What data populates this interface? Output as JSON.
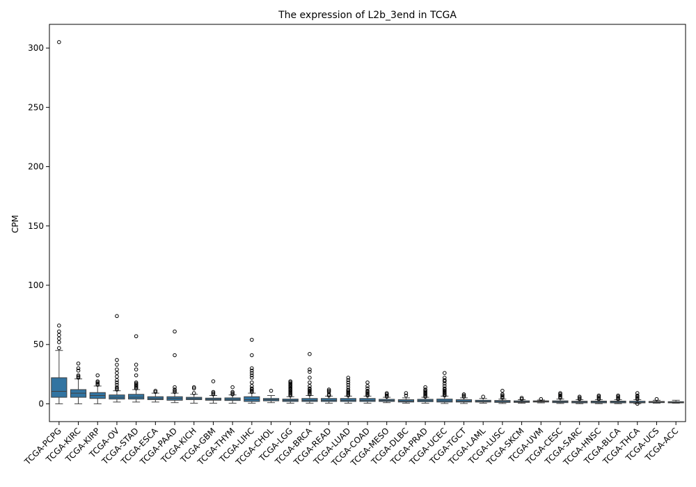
{
  "chart_data": {
    "type": "box",
    "title": "The expression of L2b_3end in TCGA",
    "xlabel": "",
    "ylabel": "CPM",
    "ylim": [
      -15,
      320
    ],
    "yticks": [
      0,
      50,
      100,
      150,
      200,
      250,
      300
    ],
    "box_color": "#3274a1",
    "grid": false,
    "categories": [
      "TCGA-PCPG",
      "TCGA-KIRC",
      "TCGA-KIRP",
      "TCGA-OV",
      "TCGA-STAD",
      "TCGA-ESCA",
      "TCGA-PAAD",
      "TCGA-KICH",
      "TCGA-GBM",
      "TCGA-THYM",
      "TCGA-LIHC",
      "TCGA-CHOL",
      "TCGA-LGG",
      "TCGA-BRCA",
      "TCGA-READ",
      "TCGA-LUAD",
      "TCGA-COAD",
      "TCGA-MESO",
      "TCGA-DLBC",
      "TCGA-PRAD",
      "TCGA-UCEC",
      "TCGA-TGCT",
      "TCGA-LAML",
      "TCGA-LUSC",
      "TCGA-SKCM",
      "TCGA-UVM",
      "TCGA-CESC",
      "TCGA-SARC",
      "TCGA-HNSC",
      "TCGA-BLCA",
      "TCGA-THCA",
      "TCGA-UCS",
      "TCGA-ACC"
    ],
    "boxes": [
      {
        "whislo": 0,
        "q1": 5.5,
        "med": 10.5,
        "q3": 22,
        "whishi": 45,
        "fliers": [
          47,
          52,
          55,
          58,
          61,
          66,
          305
        ]
      },
      {
        "whislo": 0,
        "q1": 5.5,
        "med": 9,
        "q3": 12,
        "whishi": 21,
        "fliers": [
          22,
          23,
          24,
          28,
          30,
          34
        ]
      },
      {
        "whislo": 0,
        "q1": 4.5,
        "med": 7,
        "q3": 9.5,
        "whishi": 15,
        "fliers": [
          16,
          17,
          18,
          19,
          24
        ]
      },
      {
        "whislo": 1.5,
        "q1": 4,
        "med": 5.5,
        "q3": 7.5,
        "whishi": 11,
        "fliers": [
          12,
          13,
          14,
          16,
          18,
          20,
          23,
          26,
          29,
          33,
          37,
          74
        ]
      },
      {
        "whislo": 1.5,
        "q1": 4,
        "med": 5.5,
        "q3": 8,
        "whishi": 12,
        "fliers": [
          13,
          14,
          15,
          16,
          17,
          18,
          24,
          29,
          33,
          57
        ]
      },
      {
        "whislo": 1.5,
        "q1": 3.5,
        "med": 4.5,
        "q3": 6,
        "whishi": 9,
        "fliers": [
          10,
          11
        ]
      },
      {
        "whislo": 1,
        "q1": 3,
        "med": 4.5,
        "q3": 6,
        "whishi": 9,
        "fliers": [
          10,
          11,
          12,
          14,
          41,
          61
        ]
      },
      {
        "whislo": 0.5,
        "q1": 3.5,
        "med": 4.5,
        "q3": 5.5,
        "whishi": 8,
        "fliers": [
          9,
          13,
          14
        ]
      },
      {
        "whislo": 0.5,
        "q1": 3,
        "med": 3.8,
        "q3": 4.8,
        "whishi": 7,
        "fliers": [
          8,
          9,
          10,
          19
        ]
      },
      {
        "whislo": 0.5,
        "q1": 2.8,
        "med": 3.8,
        "q3": 5,
        "whishi": 7.5,
        "fliers": [
          8,
          9,
          10,
          14
        ]
      },
      {
        "whislo": 0.5,
        "q1": 2,
        "med": 3.5,
        "q3": 6,
        "whishi": 9,
        "fliers": [
          10,
          11,
          12,
          13,
          15,
          18,
          22,
          24,
          26,
          28,
          30,
          41,
          54
        ]
      },
      {
        "whislo": 1,
        "q1": 2.5,
        "med": 3.5,
        "q3": 4.5,
        "whishi": 7,
        "fliers": [
          11
        ]
      },
      {
        "whislo": 0.5,
        "q1": 2,
        "med": 3,
        "q3": 4,
        "whishi": 6,
        "fliers": [
          7,
          8,
          9,
          10,
          11,
          12,
          13,
          14,
          15,
          16,
          17,
          18,
          19
        ]
      },
      {
        "whislo": 0.5,
        "q1": 2,
        "med": 3,
        "q3": 4.5,
        "whishi": 7,
        "fliers": [
          8,
          9,
          10,
          11,
          12,
          13,
          15,
          18,
          22,
          27,
          29,
          42
        ]
      },
      {
        "whislo": 0.5,
        "q1": 2,
        "med": 3,
        "q3": 4.5,
        "whishi": 6.5,
        "fliers": [
          7,
          8,
          10,
          11,
          12
        ]
      },
      {
        "whislo": 0.5,
        "q1": 2,
        "med": 3,
        "q3": 4.5,
        "whishi": 6.5,
        "fliers": [
          7,
          8,
          9,
          10,
          11,
          12,
          14,
          16,
          18,
          20,
          22
        ]
      },
      {
        "whislo": 0.5,
        "q1": 2,
        "med": 3,
        "q3": 4.5,
        "whishi": 6.5,
        "fliers": [
          7,
          8,
          9,
          10,
          11,
          13,
          15,
          18
        ]
      },
      {
        "whislo": 1,
        "q1": 2,
        "med": 2.8,
        "q3": 3.8,
        "whishi": 5.5,
        "fliers": [
          6,
          7,
          8,
          9
        ]
      },
      {
        "whislo": 0.5,
        "q1": 1.5,
        "med": 2.3,
        "q3": 3.5,
        "whishi": 5,
        "fliers": [
          7,
          9
        ]
      },
      {
        "whislo": 0.5,
        "q1": 1.8,
        "med": 2.8,
        "q3": 3.8,
        "whishi": 5.5,
        "fliers": [
          6,
          7,
          8,
          9,
          10,
          11,
          12,
          14
        ]
      },
      {
        "whislo": 0.3,
        "q1": 1.5,
        "med": 2.5,
        "q3": 4,
        "whishi": 6.5,
        "fliers": [
          7,
          8,
          9,
          10,
          11,
          12,
          13,
          15,
          17,
          19,
          20,
          22,
          26
        ]
      },
      {
        "whislo": 0.3,
        "q1": 1.5,
        "med": 2.2,
        "q3": 3.5,
        "whishi": 5,
        "fliers": [
          6,
          7,
          8
        ]
      },
      {
        "whislo": 0.5,
        "q1": 1.5,
        "med": 2,
        "q3": 3,
        "whishi": 4.5,
        "fliers": [
          6
        ]
      },
      {
        "whislo": 0.3,
        "q1": 1.2,
        "med": 2,
        "q3": 2.8,
        "whishi": 4,
        "fliers": [
          5,
          6,
          7,
          8,
          11
        ]
      },
      {
        "whislo": 0.5,
        "q1": 1.2,
        "med": 1.8,
        "q3": 2.5,
        "whishi": 3.5,
        "fliers": [
          4,
          5
        ]
      },
      {
        "whislo": 0.8,
        "q1": 1.5,
        "med": 2,
        "q3": 2.5,
        "whishi": 3.2,
        "fliers": [
          4
        ]
      },
      {
        "whislo": 0.3,
        "q1": 1,
        "med": 1.8,
        "q3": 2.5,
        "whishi": 4,
        "fliers": [
          5,
          6,
          7,
          8,
          9
        ]
      },
      {
        "whislo": 0.1,
        "q1": 0.8,
        "med": 1.5,
        "q3": 2.2,
        "whishi": 3.5,
        "fliers": [
          4,
          5,
          6
        ]
      },
      {
        "whislo": 0.1,
        "q1": 0.8,
        "med": 1.5,
        "q3": 2.3,
        "whishi": 3.5,
        "fliers": [
          4,
          5,
          6,
          7
        ]
      },
      {
        "whislo": 0.1,
        "q1": 0.8,
        "med": 1.5,
        "q3": 2.3,
        "whishi": 3.5,
        "fliers": [
          4,
          5,
          6,
          7
        ]
      },
      {
        "whislo": 0.1,
        "q1": 0.8,
        "med": 1.3,
        "q3": 2.2,
        "whishi": 3.5,
        "fliers": [
          4,
          5,
          6,
          7,
          9,
          0
        ]
      },
      {
        "whislo": 0.5,
        "q1": 1,
        "med": 1.5,
        "q3": 2,
        "whishi": 3,
        "fliers": [
          4
        ]
      },
      {
        "whislo": 0.5,
        "q1": 0.8,
        "med": 1.2,
        "q3": 1.8,
        "whishi": 3,
        "fliers": []
      }
    ]
  }
}
